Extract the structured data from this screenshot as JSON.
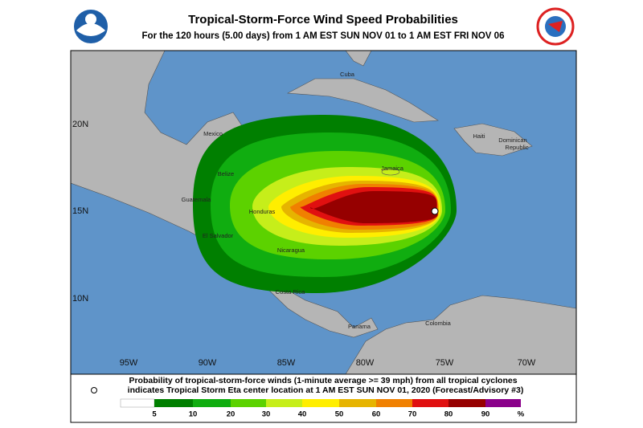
{
  "header": {
    "title": "Tropical-Storm-Force Wind Speed Probabilities",
    "subtitle": "For the 120 hours (5.00 days) from 1 AM EST SUN NOV 01 to 1 AM EST FRI NOV 06"
  },
  "map": {
    "lat_labels": [
      "20N",
      "15N",
      "10N"
    ],
    "lon_labels": [
      "95W",
      "90W",
      "85W",
      "80W",
      "75W",
      "70W"
    ],
    "places": [
      "Mexico",
      "Cuba",
      "Belize",
      "Guatemala",
      "Honduras",
      "El Salvador",
      "Nicaragua",
      "Costa Rica",
      "Panama",
      "Colombia",
      "Jamaica",
      "Haiti",
      "Dominican",
      "Republic"
    ]
  },
  "caption": {
    "line1": "Probability of tropical-storm-force winds (1-minute average >= 39 mph) from all tropical cyclones",
    "line2": "indicates Tropical Storm Eta center location at 1 AM EST SUN NOV 01, 2020 (Forecast/Advisory #3)"
  },
  "legend": {
    "values": [
      "5",
      "10",
      "20",
      "30",
      "40",
      "50",
      "60",
      "70",
      "80",
      "90"
    ],
    "unit": "%",
    "colors": [
      "#007f00",
      "#10ad10",
      "#5cd200",
      "#c6ee1a",
      "#ffee00",
      "#e6b400",
      "#f08000",
      "#e01010",
      "#960000",
      "#8a008a"
    ]
  }
}
